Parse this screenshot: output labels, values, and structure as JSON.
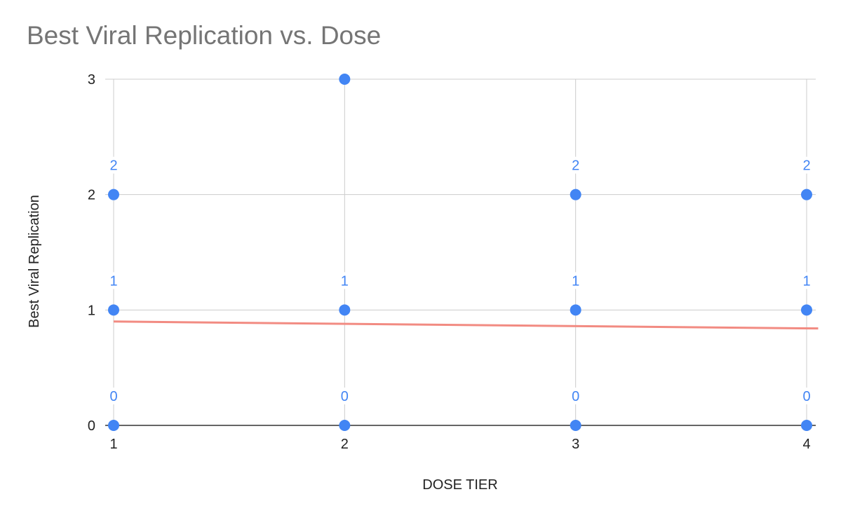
{
  "chart_data": {
    "type": "scatter",
    "title": "Best Viral Replication vs. Dose",
    "xlabel": "DOSE TIER",
    "ylabel": "Best Viral Replication",
    "xlim": [
      1,
      4
    ],
    "ylim": [
      0,
      3
    ],
    "x_ticks": [
      "1",
      "2",
      "3",
      "4"
    ],
    "y_ticks": [
      "0",
      "1",
      "2",
      "3"
    ],
    "grid": true,
    "legend": "none",
    "series": [
      {
        "points": [
          {
            "x": 1,
            "y": 0,
            "label": "0"
          },
          {
            "x": 1,
            "y": 1,
            "label": "1"
          },
          {
            "x": 1,
            "y": 2,
            "label": "2"
          },
          {
            "x": 2,
            "y": 0,
            "label": "0"
          },
          {
            "x": 2,
            "y": 1,
            "label": "1"
          },
          {
            "x": 2,
            "y": 3,
            "label": ""
          },
          {
            "x": 3,
            "y": 0,
            "label": "0"
          },
          {
            "x": 3,
            "y": 1,
            "label": "1"
          },
          {
            "x": 3,
            "y": 2,
            "label": "2"
          },
          {
            "x": 4,
            "y": 0,
            "label": "0"
          },
          {
            "x": 4,
            "y": 1,
            "label": "1"
          },
          {
            "x": 4,
            "y": 2,
            "label": "2"
          }
        ]
      }
    ],
    "trendline": {
      "x": [
        1,
        4.05
      ],
      "y": [
        0.9,
        0.84
      ]
    },
    "colors": {
      "points": "#4285f4",
      "labels": "#4285f4",
      "trendline": "#f28b82",
      "grid": "#cccccc",
      "axis": "#333333",
      "title": "#757575"
    }
  }
}
